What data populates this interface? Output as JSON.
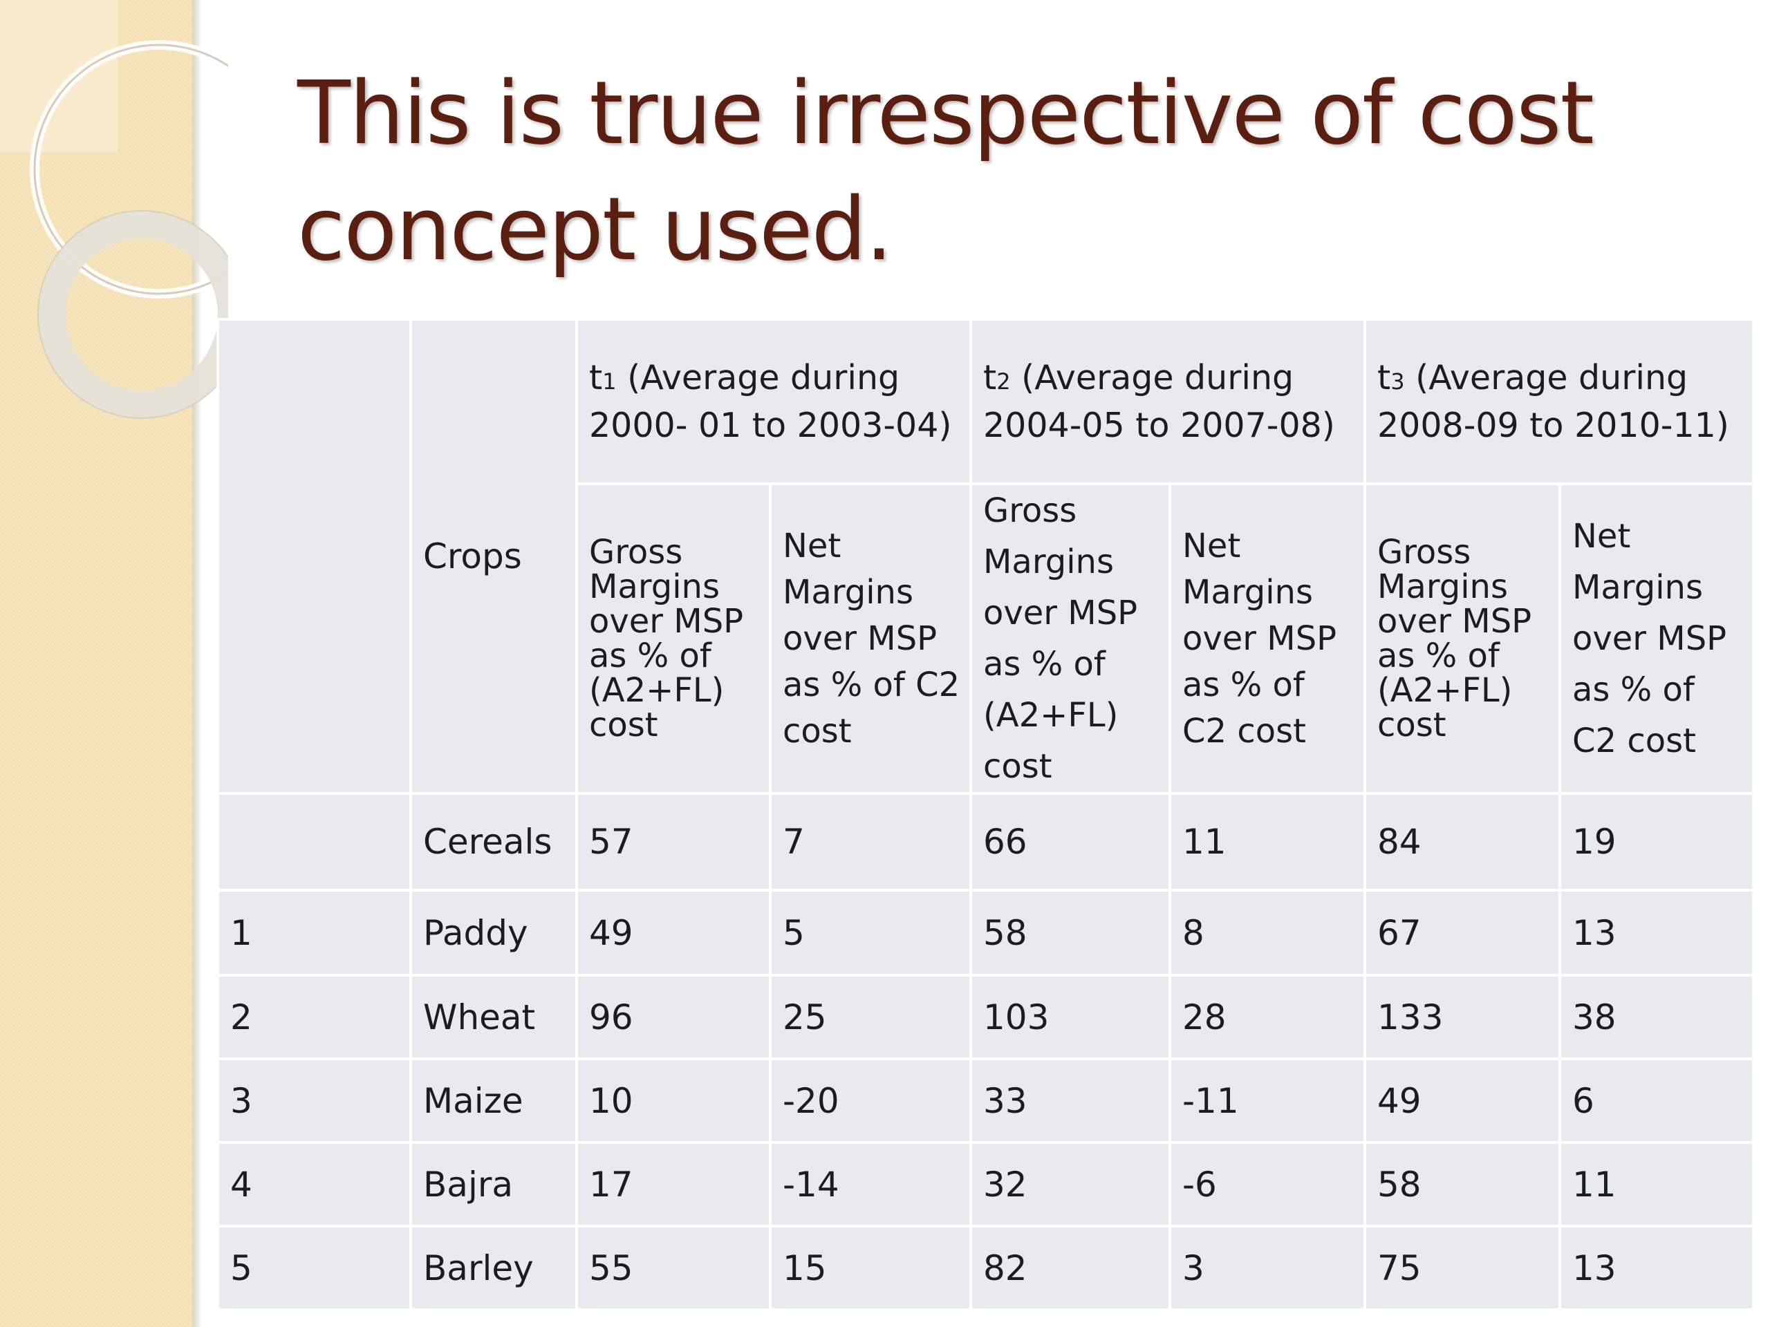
{
  "slide": {
    "title": "This is true irrespective of cost concept used."
  },
  "table": {
    "crops_header": "Crops",
    "periods": [
      {
        "prefix": "t",
        "sub": "1",
        "label": " (Average during 2000- 01 to 2003-04)"
      },
      {
        "prefix": "t",
        "sub": "2",
        "label": " (Average during 2004-05 to 2007-08)"
      },
      {
        "prefix": "t",
        "sub": "3",
        "label": " (Average during 2008-09 to 2010-11)"
      }
    ],
    "gross_margin_header": "Gross Margins over MSP as % of (A2+FL) cost",
    "net_margin_header": "Net Margins over MSP as % of C2 cost",
    "rows": [
      {
        "no": "",
        "crop": "Cereals",
        "values": [
          "57",
          "7",
          "66",
          "11",
          "84",
          "19"
        ]
      },
      {
        "no": "1",
        "crop": "Paddy",
        "values": [
          "49",
          "5",
          "58",
          "8",
          "67",
          "13"
        ]
      },
      {
        "no": "2",
        "crop": "Wheat",
        "values": [
          "96",
          "25",
          "103",
          "28",
          "133",
          "38"
        ]
      },
      {
        "no": "3",
        "crop": "Maize",
        "values": [
          "10",
          "-20",
          "33",
          "-11",
          "49",
          "6"
        ]
      },
      {
        "no": "4",
        "crop": "Bajra",
        "values": [
          "17",
          "-14",
          "32",
          "-6",
          "58",
          "11"
        ]
      },
      {
        "no": "5",
        "crop": "Barley",
        "values": [
          "55",
          "15",
          "82",
          "3",
          "75",
          "13"
        ]
      }
    ]
  }
}
